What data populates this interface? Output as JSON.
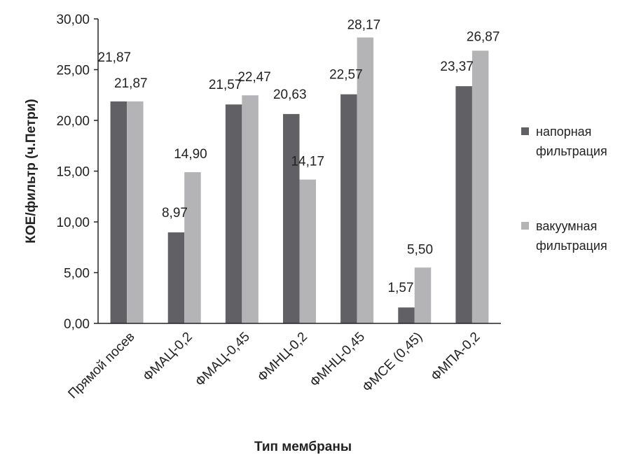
{
  "chart_data": {
    "type": "bar",
    "title": "",
    "xlabel": "Тип мембраны",
    "ylabel": "КОЕ/фильтр (ч.Петри)",
    "ylim": [
      0,
      30
    ],
    "yticks": [
      "0,00",
      "5,00",
      "10,00",
      "15,00",
      "20,00",
      "25,00",
      "30,00"
    ],
    "grid": false,
    "legend_position": "right",
    "categories": [
      "Прямой посев",
      "ФМАЦ-0,2",
      "ФМАЦ-0,45",
      "ФМНЦ-0,2",
      "ФМНЦ-0,45",
      "ФМСЕ (0,45)",
      "ФМПА-0,2"
    ],
    "series": [
      {
        "name": "напорная фильтрация",
        "legend_lines": [
          "напорная",
          "фильтрация"
        ],
        "color": "#616165",
        "values": [
          21.87,
          8.97,
          21.57,
          20.63,
          22.57,
          1.57,
          23.37
        ],
        "labels": [
          "21,87",
          "8,97",
          "21,57",
          "20,63",
          "22,57",
          "1,57",
          "23,37"
        ]
      },
      {
        "name": "вакуумная фильтрация",
        "legend_lines": [
          "вакуумная",
          "фильтрация"
        ],
        "color": "#b4b4b6",
        "values": [
          21.87,
          14.9,
          22.47,
          14.17,
          28.17,
          5.5,
          26.87
        ],
        "labels": [
          "21,87",
          "14,90",
          "22,47",
          "14,17",
          "28,17",
          "5,50",
          "26,87"
        ]
      }
    ]
  }
}
